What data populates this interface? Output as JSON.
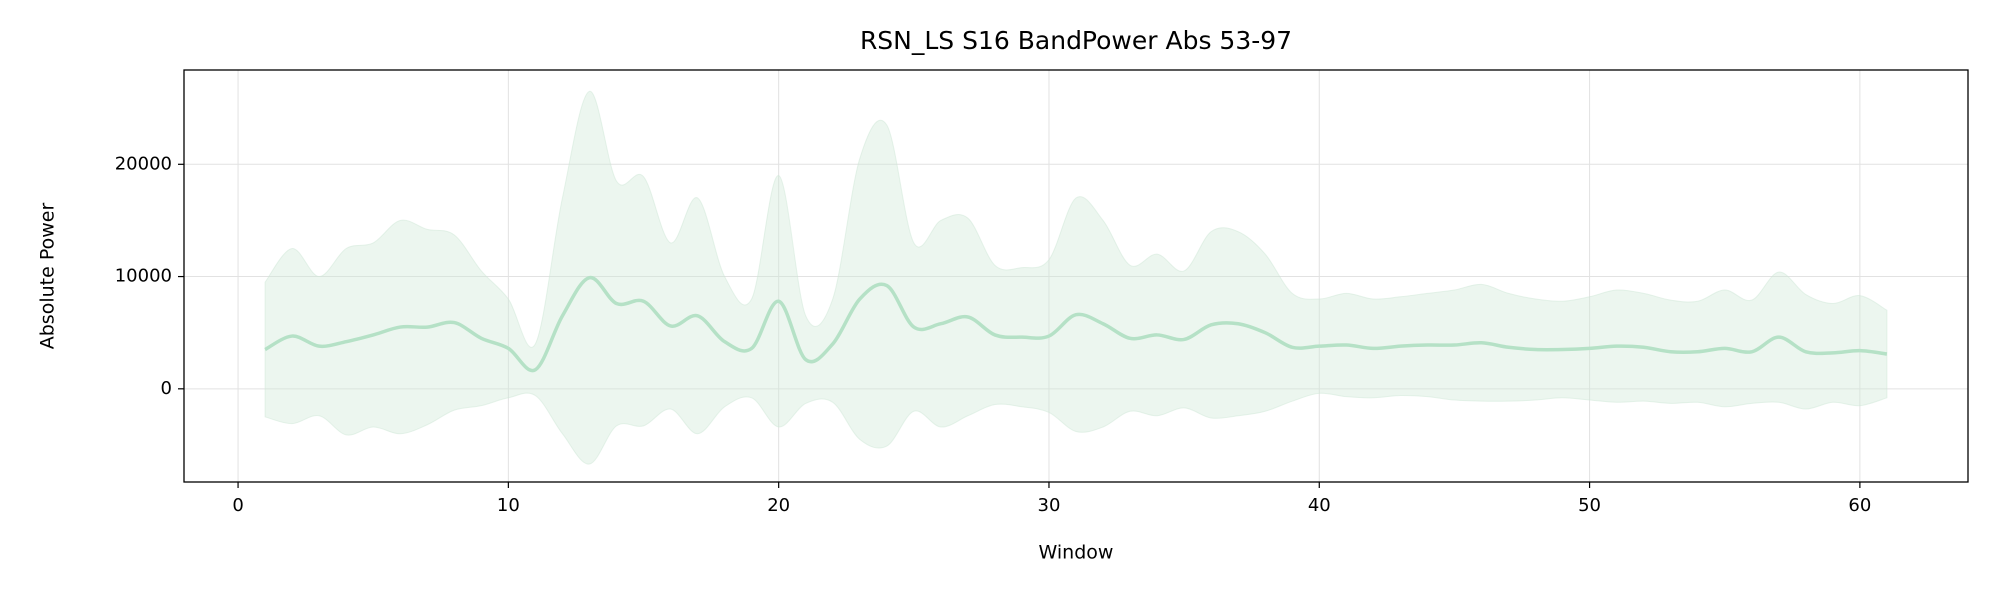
{
  "chart_data": {
    "type": "line",
    "title": "RSN_LS S16 BandPower Abs 53-97",
    "xlabel": "Window",
    "ylabel": "Absolute Power",
    "x": [
      1,
      2,
      3,
      4,
      5,
      6,
      7,
      8,
      9,
      10,
      11,
      12,
      13,
      14,
      15,
      16,
      17,
      18,
      19,
      20,
      21,
      22,
      23,
      24,
      25,
      26,
      27,
      28,
      29,
      30,
      31,
      32,
      33,
      34,
      35,
      36,
      37,
      38,
      39,
      40,
      41,
      42,
      43,
      44,
      45,
      46,
      47,
      48,
      49,
      50,
      51,
      52,
      53,
      54,
      55,
      56,
      57,
      58,
      59,
      60,
      61
    ],
    "series": [
      {
        "color": "#b5e1c6",
        "band_color": "#cfe8d7",
        "values": [
          3500,
          4700,
          3800,
          4200,
          4800,
          5500,
          5500,
          5900,
          4500,
          3600,
          1700,
          6500,
          9900,
          7600,
          7800,
          5600,
          6500,
          4200,
          3600,
          7800,
          2600,
          4000,
          8000,
          9200,
          5500,
          5800,
          6400,
          4800,
          4600,
          4700,
          6600,
          5800,
          4500,
          4800,
          4400,
          5700,
          5800,
          5000,
          3700,
          3800,
          3900,
          3600,
          3800,
          3900,
          3900,
          4100,
          3700,
          3500,
          3500,
          3600,
          3800,
          3700,
          3300,
          3300,
          3600,
          3300,
          4600,
          3300,
          3200,
          3400,
          3100
        ],
        "upper": [
          9500,
          12500,
          10000,
          12500,
          13000,
          15000,
          14200,
          13700,
          10500,
          8000,
          4000,
          17000,
          26500,
          18500,
          18900,
          13000,
          17000,
          10000,
          8000,
          19000,
          6500,
          8000,
          20500,
          23500,
          13000,
          15000,
          15200,
          11000,
          10800,
          11500,
          17000,
          15000,
          11000,
          12000,
          10500,
          14000,
          14000,
          12000,
          8500,
          8000,
          8500,
          8000,
          8200,
          8500,
          8800,
          9300,
          8500,
          8000,
          7800,
          8200,
          8800,
          8500,
          7900,
          7800,
          8800,
          7900,
          10400,
          8400,
          7600,
          8300,
          7000
        ],
        "lower": [
          -2500,
          -3100,
          -2400,
          -4100,
          -3400,
          -4000,
          -3200,
          -1900,
          -1500,
          -800,
          -600,
          -4000,
          -6700,
          -3300,
          -3300,
          -1800,
          -4000,
          -1600,
          -800,
          -3400,
          -1300,
          -1200,
          -4500,
          -5100,
          -2000,
          -3400,
          -2400,
          -1400,
          -1600,
          -2100,
          -3800,
          -3400,
          -2000,
          -2400,
          -1700,
          -2600,
          -2400,
          -2000,
          -1100,
          -400,
          -700,
          -800,
          -600,
          -700,
          -1000,
          -1100,
          -1100,
          -1000,
          -800,
          -1000,
          -1200,
          -1100,
          -1300,
          -1200,
          -1600,
          -1300,
          -1200,
          -1800,
          -1200,
          -1500,
          -800
        ]
      }
    ],
    "xlim": [
      -2,
      64
    ],
    "ylim": [
      -8300,
      28400
    ],
    "xticks": [
      0,
      10,
      20,
      30,
      40,
      50,
      60
    ],
    "yticks": [
      0,
      10000,
      20000
    ],
    "grid": true
  }
}
